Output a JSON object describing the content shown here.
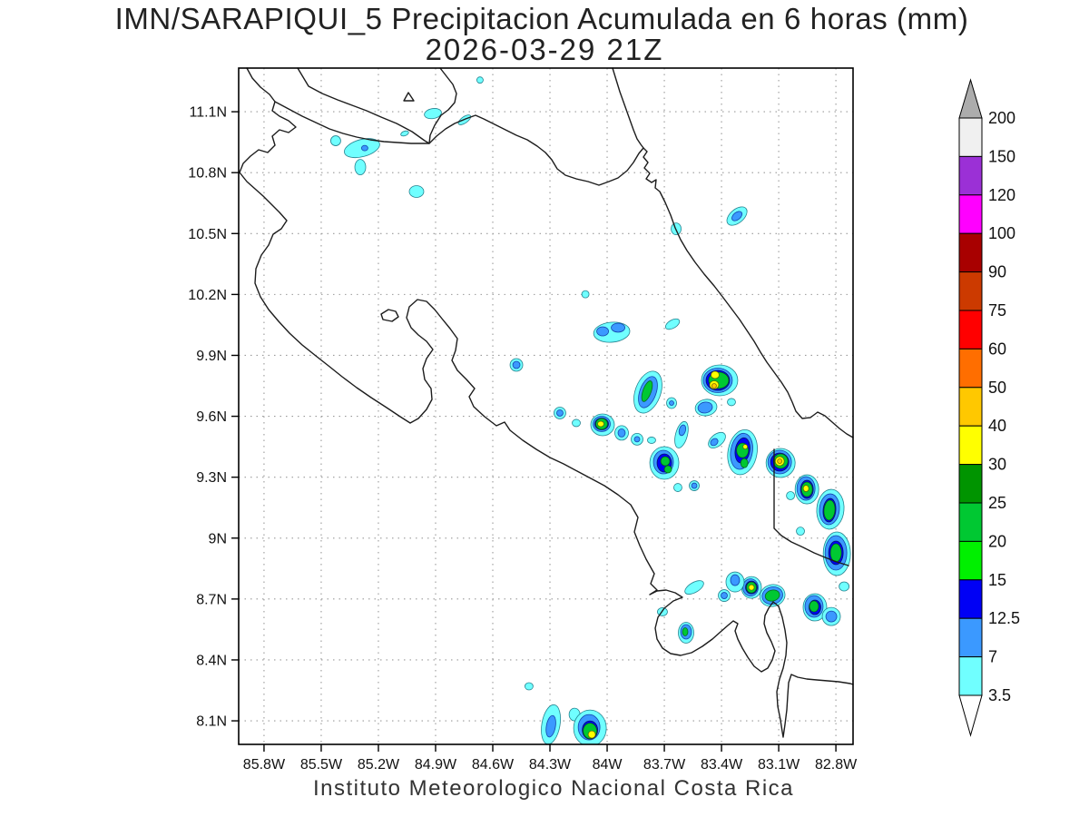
{
  "title": {
    "line1": "IMN/SARAPIQUI_5 Precipitacion Acumulada en 6 horas (mm)",
    "line2": "2026-03-29 21Z"
  },
  "footer": "Instituto Meteorologico Nacional Costa Rica",
  "axes": {
    "lat_tick_labels": [
      "11.1N",
      "10.8N",
      "10.5N",
      "10.2N",
      "9.9N",
      "9.6N",
      "9.3N",
      "9N",
      "8.7N",
      "8.4N",
      "8.1N"
    ],
    "lat_tick_values": [
      11.1,
      10.8,
      10.5,
      10.2,
      9.9,
      9.6,
      9.3,
      9.0,
      8.7,
      8.4,
      8.1
    ],
    "lon_tick_labels": [
      "85.8W",
      "85.5W",
      "85.2W",
      "84.9W",
      "84.6W",
      "84.3W",
      "84W",
      "83.7W",
      "83.4W",
      "83.1W",
      "82.8W"
    ],
    "lon_tick_values": [
      85.8,
      85.5,
      85.2,
      84.9,
      84.6,
      84.3,
      84.0,
      83.7,
      83.4,
      83.1,
      82.8
    ],
    "lon_range": [
      85.933,
      82.71
    ],
    "lat_range": [
      11.315,
      7.984
    ],
    "grid": "dotted"
  },
  "colorbar": {
    "labels": [
      "200",
      "150",
      "120",
      "100",
      "90",
      "75",
      "60",
      "50",
      "40",
      "30",
      "25",
      "20",
      "15",
      "12.5",
      "7",
      "3.5"
    ],
    "segment_colors": [
      "#F0F0F0",
      "#9B30D6",
      "#FF00FF",
      "#A80000",
      "#CC3A00",
      "#FF0000",
      "#FF6E00",
      "#FFC800",
      "#FFFF00",
      "#009400",
      "#00C832",
      "#00F000",
      "#0000F5",
      "#3B99FF",
      "#70FFFF"
    ],
    "arrow_top_color": "#ACACAC",
    "arrow_bottom_color": "#FFFFFF"
  },
  "level_colors": {
    "3.5": "#70FFFF",
    "7": "#3B99FF",
    "12.5": "#0000F5",
    "15": "#00F000",
    "20": "#00C832",
    "25": "#009400",
    "30": "#FFFF00",
    "40": "#FFC800"
  },
  "level_strokes": {
    "3.5": "#0d6d7d",
    "7": "#0a2d9d",
    "12.5": "#000a50",
    "15": "#045a10",
    "20": "#045a10",
    "25": "#023a08",
    "30": "#5a5a00",
    "40": "#705000"
  },
  "precip_cells": [
    {
      "lon": 84.667,
      "lat": 11.256,
      "layers": [
        [
          3.5,
          7,
          7,
          0,
          0,
          0
        ]
      ]
    },
    {
      "lon": 84.914,
      "lat": 11.091,
      "layers": [
        [
          3.5,
          19,
          11,
          -10,
          0,
          0
        ]
      ]
    },
    {
      "lon": 84.748,
      "lat": 11.06,
      "layers": [
        [
          3.5,
          16,
          7,
          -35,
          0,
          0
        ]
      ]
    },
    {
      "lon": 85.062,
      "lat": 10.993,
      "layers": [
        [
          3.5,
          9,
          5,
          -20,
          0,
          0
        ]
      ]
    },
    {
      "lon": 85.424,
      "lat": 10.957,
      "layers": [
        [
          3.5,
          11,
          11,
          0,
          0,
          0
        ]
      ]
    },
    {
      "lon": 85.286,
      "lat": 10.921,
      "layers": [
        [
          3.5,
          40,
          19,
          -15,
          0,
          0
        ],
        [
          7,
          7,
          6,
          0,
          3,
          0
        ]
      ]
    },
    {
      "lon": 85.295,
      "lat": 10.827,
      "layers": [
        [
          3.5,
          12,
          17,
          0,
          0,
          0
        ]
      ]
    },
    {
      "lon": 85.0,
      "lat": 10.707,
      "layers": [
        [
          3.5,
          16,
          13,
          0,
          0,
          0
        ]
      ]
    },
    {
      "lon": 83.638,
      "lat": 10.523,
      "layers": [
        [
          3.5,
          11,
          13,
          0,
          0,
          0
        ]
      ]
    },
    {
      "lon": 83.319,
      "lat": 10.586,
      "layers": [
        [
          3.5,
          26,
          15,
          -40,
          0,
          0
        ],
        [
          7,
          13,
          8,
          -40,
          0,
          0
        ]
      ]
    },
    {
      "lon": 84.114,
      "lat": 10.201,
      "layers": [
        [
          3.5,
          8,
          8,
          0,
          0,
          0
        ]
      ]
    },
    {
      "lon": 83.657,
      "lat": 10.054,
      "layers": [
        [
          3.5,
          17,
          9,
          -30,
          0,
          0
        ]
      ]
    },
    {
      "lon": 83.976,
      "lat": 10.014,
      "layers": [
        [
          3.5,
          40,
          22,
          -5,
          0,
          0
        ],
        [
          7,
          13,
          10,
          0,
          -10,
          -1
        ],
        [
          7,
          15,
          10,
          0,
          7,
          -5
        ]
      ]
    },
    {
      "lon": 84.476,
      "lat": 9.853,
      "layers": [
        [
          3.5,
          14,
          14,
          0,
          0,
          0
        ],
        [
          7,
          8,
          8,
          0,
          0,
          0
        ]
      ]
    },
    {
      "lon": 83.786,
      "lat": 9.719,
      "layers": [
        [
          3.5,
          28,
          48,
          20,
          0,
          0
        ],
        [
          7,
          18,
          36,
          20,
          0,
          0
        ],
        [
          20,
          9,
          24,
          20,
          -1,
          -1
        ]
      ]
    },
    {
      "lon": 83.41,
      "lat": 9.777,
      "layers": [
        [
          3.5,
          40,
          34,
          0,
          0,
          0
        ],
        [
          7,
          32,
          27,
          0,
          -2,
          0
        ],
        [
          12.5,
          26,
          22,
          0,
          -2,
          0
        ],
        [
          20,
          22,
          18,
          0,
          -1,
          0
        ],
        [
          30,
          9,
          8,
          0,
          -5,
          -6
        ],
        [
          30,
          10,
          9,
          0,
          -6,
          5
        ],
        [
          40,
          5,
          5,
          0,
          -6,
          6
        ]
      ]
    },
    {
      "lon": 83.481,
      "lat": 9.643,
      "layers": [
        [
          3.5,
          24,
          18,
          -10,
          0,
          0
        ],
        [
          7,
          16,
          12,
          -10,
          -1,
          0
        ]
      ]
    },
    {
      "lon": 83.348,
      "lat": 9.67,
      "layers": [
        [
          3.5,
          9,
          8,
          0,
          0,
          0
        ]
      ]
    },
    {
      "lon": 83.767,
      "lat": 9.482,
      "layers": [
        [
          3.5,
          9,
          7,
          0,
          0,
          0
        ]
      ]
    },
    {
      "lon": 83.843,
      "lat": 9.487,
      "layers": [
        [
          3.5,
          13,
          13,
          0,
          0,
          0
        ],
        [
          7,
          6,
          6,
          0,
          0,
          0
        ]
      ]
    },
    {
      "lon": 83.61,
      "lat": 9.509,
      "layers": [
        [
          3.5,
          13,
          30,
          15,
          0,
          0
        ],
        [
          7,
          7,
          12,
          15,
          1,
          -5
        ]
      ]
    },
    {
      "lon": 83.424,
      "lat": 9.482,
      "layers": [
        [
          3.5,
          22,
          13,
          -40,
          0,
          0
        ],
        [
          7,
          9,
          7,
          -40,
          -3,
          2
        ]
      ]
    },
    {
      "lon": 83.662,
      "lat": 9.665,
      "layers": [
        [
          3.5,
          11,
          12,
          0,
          0,
          0
        ],
        [
          7,
          5,
          5,
          0,
          0,
          0
        ]
      ]
    },
    {
      "lon": 83.7,
      "lat": 9.37,
      "layers": [
        [
          3.5,
          32,
          36,
          0,
          0,
          0
        ],
        [
          7,
          22,
          26,
          0,
          -1,
          -1
        ],
        [
          12.5,
          16,
          20,
          0,
          0,
          0
        ],
        [
          20,
          10,
          10,
          0,
          1,
          -2
        ],
        [
          20,
          8,
          8,
          0,
          4,
          7
        ]
      ]
    },
    {
      "lon": 83.629,
      "lat": 9.249,
      "layers": [
        [
          3.5,
          9,
          9,
          0,
          0,
          0
        ]
      ]
    },
    {
      "lon": 83.543,
      "lat": 9.258,
      "layers": [
        [
          3.5,
          11,
          11,
          0,
          0,
          0
        ],
        [
          7,
          6,
          6,
          0,
          0,
          0
        ]
      ]
    },
    {
      "lon": 83.29,
      "lat": 9.423,
      "layers": [
        [
          3.5,
          32,
          50,
          10,
          0,
          0
        ],
        [
          7,
          24,
          40,
          10,
          -1,
          -1
        ],
        [
          12.5,
          16,
          28,
          10,
          0,
          -2
        ],
        [
          20,
          13,
          16,
          0,
          0,
          -2
        ],
        [
          30,
          5,
          5,
          0,
          3,
          -6
        ],
        [
          20,
          8,
          10,
          0,
          2,
          12
        ]
      ]
    },
    {
      "lon": 83.09,
      "lat": 9.37,
      "layers": [
        [
          3.5,
          32,
          32,
          0,
          0,
          0
        ],
        [
          7,
          26,
          26,
          0,
          -1,
          -1
        ],
        [
          12.5,
          20,
          20,
          0,
          -1,
          -1
        ],
        [
          20,
          16,
          16,
          0,
          0,
          -2
        ],
        [
          30,
          10,
          10,
          0,
          -1,
          -2
        ],
        [
          40,
          5,
          5,
          0,
          -1,
          -2
        ]
      ]
    },
    {
      "lon": 83.038,
      "lat": 9.209,
      "layers": [
        [
          3.5,
          9,
          9,
          0,
          0,
          0
        ]
      ]
    },
    {
      "lon": 82.952,
      "lat": 9.24,
      "layers": [
        [
          3.5,
          26,
          32,
          0,
          0,
          0
        ],
        [
          7,
          20,
          26,
          0,
          -1,
          -1
        ],
        [
          12.5,
          14,
          20,
          0,
          0,
          0
        ],
        [
          20,
          12,
          16,
          0,
          0,
          0
        ],
        [
          30,
          6,
          7,
          0,
          -1,
          -1
        ]
      ]
    },
    {
      "lon": 82.829,
      "lat": 9.142,
      "layers": [
        [
          3.5,
          30,
          44,
          5,
          0,
          0
        ],
        [
          7,
          22,
          34,
          5,
          -1,
          0
        ],
        [
          12.5,
          14,
          26,
          5,
          -1,
          1
        ],
        [
          20,
          12,
          22,
          5,
          -1,
          1
        ]
      ]
    },
    {
      "lon": 82.986,
      "lat": 9.034,
      "layers": [
        [
          3.5,
          9,
          9,
          0,
          0,
          0
        ]
      ]
    },
    {
      "lon": 82.795,
      "lat": 8.923,
      "layers": [
        [
          3.5,
          30,
          48,
          0,
          0,
          0
        ],
        [
          7,
          24,
          38,
          0,
          -1,
          -1
        ],
        [
          12.5,
          16,
          26,
          0,
          -1,
          -1
        ],
        [
          20,
          12,
          20,
          0,
          -1,
          -1
        ]
      ]
    },
    {
      "lon": 82.757,
      "lat": 8.762,
      "layers": [
        [
          3.5,
          11,
          10,
          0,
          0,
          0
        ]
      ]
    },
    {
      "lon": 82.91,
      "lat": 8.659,
      "layers": [
        [
          3.5,
          26,
          30,
          0,
          0,
          0
        ],
        [
          7,
          20,
          24,
          0,
          -1,
          -1
        ],
        [
          12.5,
          13,
          16,
          0,
          0,
          0
        ],
        [
          20,
          10,
          12,
          0,
          -1,
          -1
        ]
      ]
    },
    {
      "lon": 82.824,
      "lat": 8.614,
      "layers": [
        [
          3.5,
          20,
          20,
          0,
          0,
          0
        ],
        [
          7,
          12,
          12,
          0,
          0,
          0
        ]
      ]
    },
    {
      "lon": 83.243,
      "lat": 8.757,
      "layers": [
        [
          3.5,
          22,
          24,
          0,
          0,
          0
        ],
        [
          7,
          17,
          19,
          0,
          -1,
          0
        ],
        [
          12.5,
          13,
          14,
          0,
          0,
          0
        ],
        [
          20,
          11,
          12,
          0,
          0,
          0
        ],
        [
          30,
          6,
          6,
          0,
          0,
          0
        ]
      ]
    },
    {
      "lon": 83.133,
      "lat": 8.717,
      "layers": [
        [
          3.5,
          28,
          24,
          -15,
          0,
          0
        ],
        [
          7,
          23,
          19,
          -15,
          0,
          0
        ],
        [
          20,
          16,
          12,
          -15,
          0,
          0
        ]
      ]
    },
    {
      "lon": 83.329,
      "lat": 8.784,
      "layers": [
        [
          3.5,
          20,
          22,
          0,
          0,
          0
        ],
        [
          7,
          10,
          12,
          0,
          0,
          -2
        ]
      ]
    },
    {
      "lon": 83.386,
      "lat": 8.717,
      "layers": [
        [
          3.5,
          13,
          13,
          0,
          0,
          0
        ],
        [
          7,
          7,
          7,
          0,
          0,
          0
        ]
      ]
    },
    {
      "lon": 83.543,
      "lat": 8.757,
      "layers": [
        [
          3.5,
          23,
          11,
          -30,
          0,
          0
        ]
      ]
    },
    {
      "lon": 83.586,
      "lat": 8.534,
      "layers": [
        [
          3.5,
          17,
          23,
          0,
          0,
          0
        ],
        [
          7,
          12,
          16,
          0,
          0,
          -1
        ],
        [
          20,
          6,
          9,
          0,
          -1,
          -1
        ]
      ]
    },
    {
      "lon": 83.71,
      "lat": 8.637,
      "layers": [
        [
          3.5,
          11,
          9,
          0,
          0,
          0
        ]
      ]
    },
    {
      "lon": 84.024,
      "lat": 9.558,
      "layers": [
        [
          3.5,
          26,
          24,
          0,
          0,
          0
        ],
        [
          7,
          19,
          17,
          0,
          -1,
          -1
        ],
        [
          12.5,
          15,
          13,
          0,
          -1,
          -1
        ],
        [
          20,
          13,
          12,
          0,
          -1,
          -1
        ],
        [
          30,
          7,
          6,
          0,
          -2,
          -1
        ]
      ]
    },
    {
      "lon": 84.248,
      "lat": 9.616,
      "layers": [
        [
          3.5,
          13,
          13,
          0,
          0,
          0
        ],
        [
          7,
          7,
          7,
          0,
          0,
          0
        ]
      ]
    },
    {
      "lon": 84.162,
      "lat": 9.567,
      "layers": [
        [
          3.5,
          9,
          8,
          0,
          0,
          0
        ]
      ]
    },
    {
      "lon": 83.924,
      "lat": 9.518,
      "layers": [
        [
          3.5,
          15,
          16,
          0,
          0,
          0
        ],
        [
          7,
          8,
          9,
          0,
          0,
          0
        ]
      ]
    },
    {
      "lon": 84.41,
      "lat": 8.27,
      "layers": [
        [
          3.5,
          9,
          8,
          0,
          0,
          0
        ]
      ]
    },
    {
      "lon": 84.295,
      "lat": 8.082,
      "layers": [
        [
          3.5,
          20,
          44,
          10,
          0,
          0
        ],
        [
          7,
          10,
          24,
          10,
          0,
          2
        ]
      ]
    },
    {
      "lon": 84.171,
      "lat": 8.131,
      "layers": [
        [
          3.5,
          12,
          14,
          0,
          0,
          0
        ]
      ]
    },
    {
      "lon": 84.09,
      "lat": 8.064,
      "layers": [
        [
          3.5,
          36,
          40,
          0,
          0,
          0
        ],
        [
          7,
          24,
          28,
          0,
          -1,
          -1
        ],
        [
          12.5,
          17,
          20,
          0,
          0,
          2
        ],
        [
          20,
          15,
          17,
          0,
          0,
          3
        ],
        [
          30,
          8,
          8,
          0,
          2,
          7
        ]
      ]
    }
  ]
}
